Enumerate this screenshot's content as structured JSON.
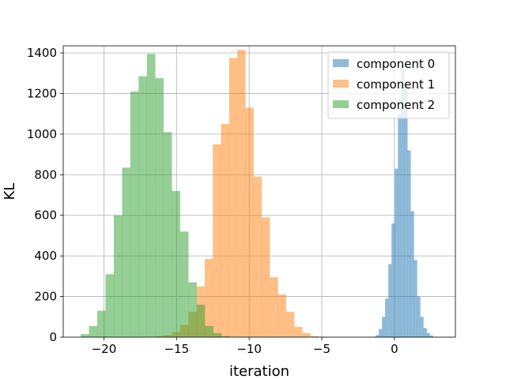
{
  "chart_data": {
    "type": "bar",
    "title": "",
    "xlabel": "iteration",
    "ylabel": "KL",
    "xlim": [
      -22.8,
      4.2
    ],
    "ylim": [
      0,
      1400
    ],
    "xticks": [
      -20,
      -15,
      -10,
      -5,
      0
    ],
    "yticks": [
      0,
      200,
      400,
      600,
      800,
      1000,
      1200,
      1400
    ],
    "grid": true,
    "legend_position": "top-right",
    "series": [
      {
        "name": "component 0",
        "color": "#1f77b4",
        "bin_width": 0.22,
        "bins": [
          [
            -1.3,
            10
          ],
          [
            -1.08,
            40
          ],
          [
            -0.86,
            100
          ],
          [
            -0.64,
            190
          ],
          [
            -0.42,
            360
          ],
          [
            -0.2,
            560
          ],
          [
            0.02,
            830
          ],
          [
            0.24,
            1100
          ],
          [
            0.46,
            1340
          ],
          [
            0.68,
            1260
          ],
          [
            0.9,
            920
          ],
          [
            1.12,
            620
          ],
          [
            1.34,
            380
          ],
          [
            1.56,
            200
          ],
          [
            1.78,
            100
          ],
          [
            2.0,
            45
          ],
          [
            2.22,
            20
          ],
          [
            2.44,
            8
          ]
        ]
      },
      {
        "name": "component 1",
        "color": "#ff7f0e",
        "bin_width": 0.56,
        "bins": [
          [
            -16.42,
            5
          ],
          [
            -15.86,
            10
          ],
          [
            -15.3,
            25
          ],
          [
            -14.74,
            60
          ],
          [
            -14.18,
            125
          ],
          [
            -13.62,
            250
          ],
          [
            -13.06,
            385
          ],
          [
            -12.5,
            950
          ],
          [
            -11.94,
            1050
          ],
          [
            -11.38,
            1375
          ],
          [
            -10.82,
            1415
          ],
          [
            -10.26,
            1130
          ],
          [
            -9.7,
            790
          ],
          [
            -9.14,
            590
          ],
          [
            -8.58,
            295
          ],
          [
            -8.02,
            210
          ],
          [
            -7.46,
            125
          ],
          [
            -6.9,
            50
          ],
          [
            -6.34,
            20
          ],
          [
            -5.78,
            5
          ]
        ]
      },
      {
        "name": "component 2",
        "color": "#2ca02c",
        "bin_width": 0.57,
        "bins": [
          [
            -21.6,
            15
          ],
          [
            -21.03,
            55
          ],
          [
            -20.46,
            130
          ],
          [
            -19.89,
            310
          ],
          [
            -19.32,
            600
          ],
          [
            -18.75,
            835
          ],
          [
            -18.18,
            1210
          ],
          [
            -17.61,
            1285
          ],
          [
            -17.04,
            1395
          ],
          [
            -16.47,
            1275
          ],
          [
            -15.9,
            1010
          ],
          [
            -15.33,
            720
          ],
          [
            -14.76,
            520
          ],
          [
            -14.19,
            270
          ],
          [
            -13.62,
            160
          ],
          [
            -13.05,
            55
          ],
          [
            -12.48,
            20
          ],
          [
            -11.91,
            5
          ]
        ]
      }
    ]
  }
}
